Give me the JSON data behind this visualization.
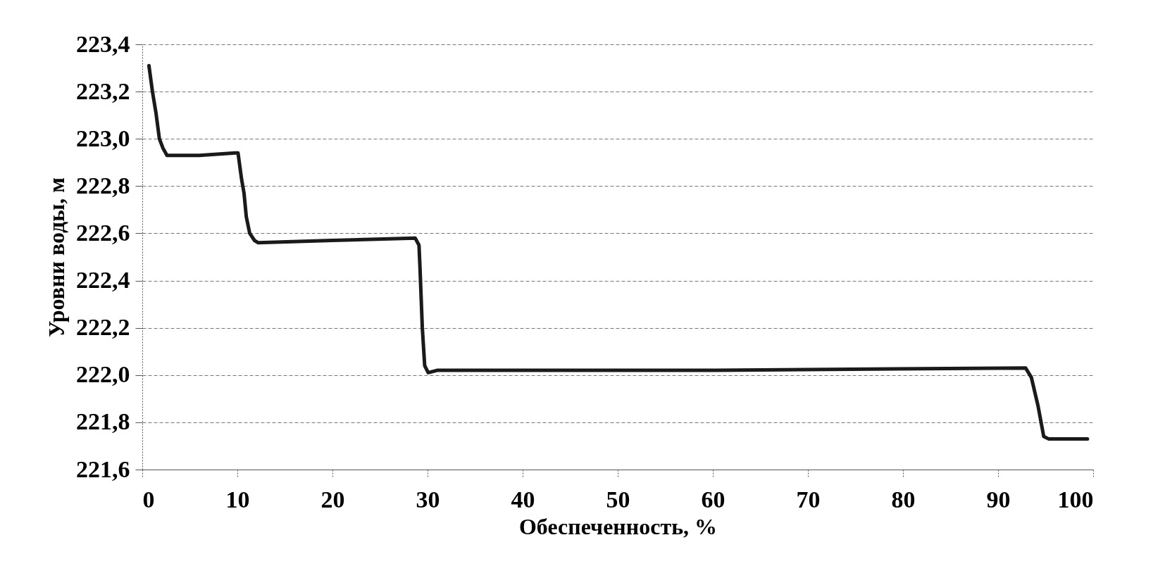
{
  "chart_data": {
    "type": "line",
    "xlabel": "Обеспеченность, %",
    "ylabel": "Уровни воды, м",
    "series": [
      {
        "color": "#1a1a1a",
        "x": [
          0.7,
          1.07,
          1.44,
          1.8,
          2.18,
          2.6,
          3.2,
          6,
          9.8,
          10.07,
          10.44,
          10.7,
          10.94,
          11.3,
          11.8,
          12.2,
          20,
          28.7,
          29.1,
          29.2,
          29.45,
          29.7,
          30.07,
          31,
          60,
          92.9,
          93.5,
          94.2,
          94.8,
          95.3,
          99.4
        ],
        "values": [
          223.31,
          223.2,
          223.11,
          223.0,
          222.96,
          222.93,
          222.93,
          222.93,
          222.94,
          222.94,
          222.83,
          222.77,
          222.67,
          222.6,
          222.57,
          222.56,
          222.57,
          222.58,
          222.55,
          222.46,
          222.2,
          222.04,
          222.01,
          222.02,
          222.02,
          222.03,
          221.99,
          221.87,
          221.74,
          221.73,
          221.73
        ]
      }
    ],
    "xlim": [
      0,
      100
    ],
    "xticks": [
      0,
      10,
      20,
      30,
      40,
      50,
      60,
      70,
      80,
      90,
      100
    ],
    "ylim": [
      221.6,
      223.4
    ],
    "yticks": [
      {
        "value": 221.6,
        "label": "221,6"
      },
      {
        "value": 221.8,
        "label": "221,8"
      },
      {
        "value": 222.0,
        "label": "222,0"
      },
      {
        "value": 222.2,
        "label": "222,2"
      },
      {
        "value": 222.4,
        "label": "222,4"
      },
      {
        "value": 222.6,
        "label": "222,6"
      },
      {
        "value": 222.8,
        "label": "222,8"
      },
      {
        "value": 223.0,
        "label": "223,0"
      },
      {
        "value": 223.2,
        "label": "223,2"
      },
      {
        "value": 223.4,
        "label": "223,4"
      }
    ],
    "grid": "y",
    "line_style": "solid",
    "marker": "none"
  }
}
